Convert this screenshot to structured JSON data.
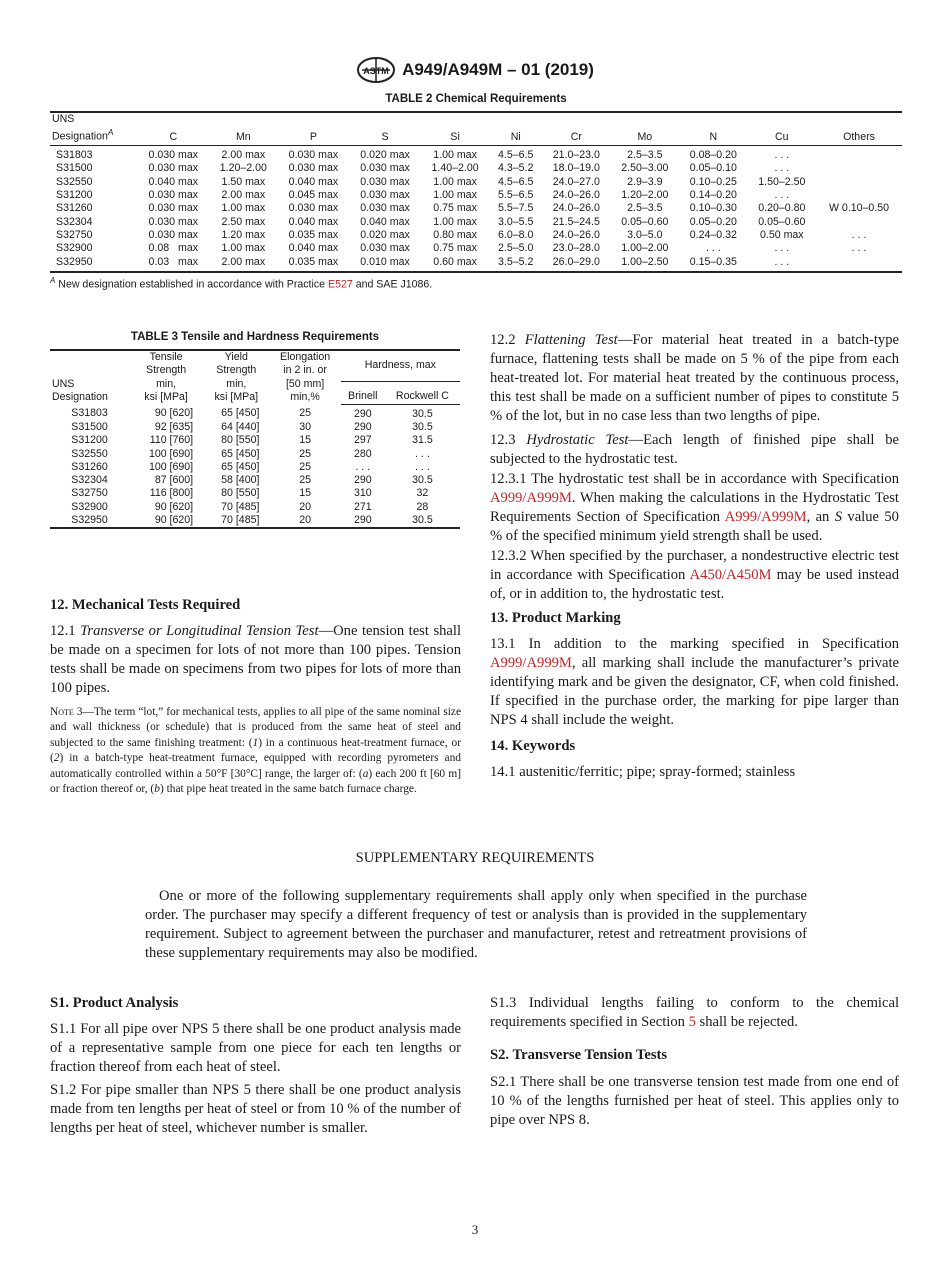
{
  "header": {
    "title": "A949/A949M – 01 (2019)",
    "logo": "ASTM"
  },
  "table2": {
    "title": "TABLE 2 Chemical Requirements",
    "head_line1": "UNS",
    "head_designation": "Designation",
    "head_sup": "A",
    "columns": [
      "C",
      "Mn",
      "P",
      "S",
      "Si",
      "Ni",
      "Cr",
      "Mo",
      "N",
      "Cu",
      "Others"
    ],
    "rows": [
      [
        "S31803",
        "0.030 max",
        "2.00 max",
        "0.030 max",
        "0.020 max",
        "1.00 max",
        "4.5–6.5",
        "21.0–23.0",
        "2.5–3.5",
        "0.08–0.20",
        ". . .",
        ""
      ],
      [
        "S31500",
        "0.030 max",
        "1.20–2.00",
        "0.030 max",
        "0.030 max",
        "1.40–2.00",
        "4.3–5.2",
        "18.0–19.0",
        "2.50–3.00",
        "0.05–0.10",
        ". . .",
        ""
      ],
      [
        "S32550",
        "0.040 max",
        "1.50 max",
        "0.040 max",
        "0.030 max",
        "1.00 max",
        "4.5–6.5",
        "24.0–27.0",
        "2.9–3.9",
        "0.10–0.25",
        "1.50–2.50",
        ""
      ],
      [
        "S31200",
        "0.030 max",
        "2.00 max",
        "0.045 max",
        "0.030 max",
        "1.00 max",
        "5.5–6.5",
        "24.0–26.0",
        "1.20–2.00",
        "0.14–0.20",
        ". . .",
        ""
      ],
      [
        "S31260",
        "0.030 max",
        "1.00 max",
        "0.030 max",
        "0.030 max",
        "0.75 max",
        "5.5–7.5",
        "24.0–26.0",
        "2.5–3.5",
        "0.10–0.30",
        "0.20–0.80",
        "W 0.10–0.50"
      ],
      [
        "S32304",
        "0.030 max",
        "2.50 max",
        "0.040 max",
        "0.040 max",
        "1.00 max",
        "3.0–5.5",
        "21.5–24.5",
        "0.05–0.60",
        "0.05–0.20",
        "0.05–0.60",
        ""
      ],
      [
        "S32750",
        "0.030 max",
        "1.20 max",
        "0.035 max",
        "0.020 max",
        "0.80 max",
        "6.0–8.0",
        "24.0–26.0",
        "3.0–5.0",
        "0.24–0.32",
        "0.50 max",
        ". . ."
      ],
      [
        "S32900",
        "0.08   max",
        "1.00 max",
        "0.040 max",
        "0.030 max",
        "0.75 max",
        "2.5–5.0",
        "23.0–28.0",
        "1.00–2.00",
        ". . .",
        ". . .",
        ". . ."
      ],
      [
        "S32950",
        "0.03   max",
        "2.00 max",
        "0.035 max",
        "0.010 max",
        "0.60 max",
        "3.5–5.2",
        "26.0–29.0",
        "1.00–2.50",
        "0.15–0.35",
        ". . .",
        ""
      ]
    ],
    "footnote": {
      "sup": "A",
      "pre": " New designation established in accordance with Practice ",
      "link": "E527",
      "post": " and SAE J1086."
    }
  },
  "table3": {
    "title": "TABLE 3 Tensile and Hardness Requirements",
    "headers": {
      "uns": [
        "UNS",
        "Designation"
      ],
      "tensile": [
        "Tensile",
        "Strength",
        "min,",
        "ksi [MPa]"
      ],
      "yield": [
        "Yield",
        "Strength",
        "min,",
        "ksi [MPa]"
      ],
      "elong": [
        "Elongation",
        "in 2 in. or",
        "[50 mm]",
        "min,%"
      ],
      "hardness": "Hardness, max",
      "brinell": "Brinell",
      "rockwell": "Rockwell C"
    },
    "rows": [
      [
        "S31803",
        "90 [620]",
        "65 [450]",
        "25",
        "290",
        "30.5"
      ],
      [
        "S31500",
        "92 [635]",
        "64 [440]",
        "30",
        "290",
        "30.5"
      ],
      [
        "S31200",
        "110 [760]",
        "80 [550]",
        "15",
        "297",
        "31.5"
      ],
      [
        "S32550",
        "100 [690]",
        "65 [450]",
        "25",
        "280",
        ". . ."
      ],
      [
        "S31260",
        "100 [690]",
        "65 [450]",
        "25",
        ". . .",
        ". . ."
      ],
      [
        "S32304",
        "87 [600]",
        "58 [400]",
        "25",
        "290",
        "30.5"
      ],
      [
        "S32750",
        "116 [800]",
        "80 [550]",
        "15",
        "310",
        "32"
      ],
      [
        "S32900",
        "90 [620]",
        "70 [485]",
        "20",
        "271",
        "28"
      ],
      [
        "S32950",
        "90 [620]",
        "70 [485]",
        "20",
        "290",
        "30.5"
      ]
    ]
  },
  "left": {
    "s12_title": "12. Mechanical Tests Required",
    "p12_1": [
      {
        "t": "12.1 "
      },
      {
        "t": "Transverse or Longitudinal Tension Test",
        "i": true
      },
      {
        "t": "—One tension test shall be made on a specimen for lots of not more than 100 pipes. Tension tests shall be made on specimens from two pipes for lots of more than 100 pipes."
      }
    ],
    "note3": [
      {
        "t": "Note",
        "sc": true
      },
      {
        "t": " 3—The term “lot,” for mechanical tests, applies to all pipe of the same nominal size and wall thickness (or schedule) that is produced from the same heat of steel and subjected to the same finishing treatment: ("
      },
      {
        "t": "1",
        "i": true
      },
      {
        "t": ") in a continuous heat-treatment furnace, or ("
      },
      {
        "t": "2",
        "i": true
      },
      {
        "t": ") in a batch-type heat-treatment furnace, equipped with recording pyrometers and automatically controlled within a 50°F [30°C] range, the larger of: ("
      },
      {
        "t": "a",
        "i": true
      },
      {
        "t": ") each 200 ft [60 m] or fraction thereof or, ("
      },
      {
        "t": "b",
        "i": true
      },
      {
        "t": ") that pipe heat treated in the same batch furnace charge."
      }
    ]
  },
  "right": {
    "p12_2": [
      {
        "t": "12.2 "
      },
      {
        "t": "Flattening Test",
        "i": true
      },
      {
        "t": "—For material heat treated in a batch-type furnace, flattening tests shall be made on 5 % of the pipe from each heat-treated lot. For material heat treated by the continuous process, this test shall be made on a sufficient number of pipes to constitute 5 % of the lot, but in no case less than two lengths of pipe."
      }
    ],
    "p12_3": [
      {
        "t": "12.3 "
      },
      {
        "t": "Hydrostatic Test",
        "i": true
      },
      {
        "t": "—Each length of finished pipe shall be subjected to the hydrostatic test."
      }
    ],
    "p12_3_1": [
      {
        "t": "12.3.1 The hydrostatic test shall be in accordance with Specification "
      },
      {
        "t": "A999/A999M",
        "link": true
      },
      {
        "t": ". When making the calculations in the Hydrostatic Test Requirements Section of Specification "
      },
      {
        "t": "A999/A999M",
        "link": true
      },
      {
        "t": ", an "
      },
      {
        "t": "S",
        "i": true
      },
      {
        "t": " value 50 % of the specified minimum yield strength shall be used."
      }
    ],
    "p12_3_2": [
      {
        "t": "12.3.2 When specified by the purchaser, a nondestructive electric test in accordance with Specification "
      },
      {
        "t": "A450/A450M",
        "link": true
      },
      {
        "t": " may be used instead of, or in addition to, the hydrostatic test."
      }
    ],
    "s13_title": "13. Product Marking",
    "p13_1": [
      {
        "t": "13.1 In addition to the marking specified in Specification "
      },
      {
        "t": "A999/A999M",
        "link": true
      },
      {
        "t": ", all marking shall include the manufacturer’s private identifying mark and be given the designator, CF, when cold finished. If specified in the purchase order, the marking for pipe larger than NPS 4 shall include the weight."
      }
    ],
    "s14_title": "14. Keywords",
    "p14_1": [
      {
        "t": "14.1 austenitic/ferritic; pipe; spray-formed; stainless"
      }
    ]
  },
  "supplementary": {
    "title": "SUPPLEMENTARY REQUIREMENTS",
    "intro": "One or more of the following supplementary requirements shall apply only when specified in the purchase order. The purchaser may specify a different frequency of test or analysis than is provided in the supplementary requirement. Subject to agreement between the purchaser and manufacturer, retest and retreatment provisions of these supplementary requirements may also be modified.",
    "s1_title": "S1. Product Analysis",
    "s1_1": [
      {
        "t": "S1.1 For all pipe over NPS 5 there shall be one product analysis made of a representative sample from one piece for each ten lengths or fraction thereof from each heat of steel."
      }
    ],
    "s1_2": [
      {
        "t": "S1.2 For pipe smaller than NPS 5 there shall be one product analysis made from ten lengths per heat of steel or from 10 % of the number of lengths per heat of steel, whichever number is smaller."
      }
    ],
    "s1_3": [
      {
        "t": "S1.3 Individual lengths failing to conform to the chemical requirements specified in Section "
      },
      {
        "t": "5",
        "link": true
      },
      {
        "t": " shall be rejected."
      }
    ],
    "s2_title": "S2. Transverse Tension Tests",
    "s2_1": [
      {
        "t": "S2.1 There shall be one transverse tension test made from one end of 10 % of the lengths furnished per heat of steel. This applies only to pipe over NPS 8."
      }
    ]
  },
  "page_number": "3",
  "colors": {
    "link": "#c4252a",
    "text": "#1a1a1a"
  }
}
